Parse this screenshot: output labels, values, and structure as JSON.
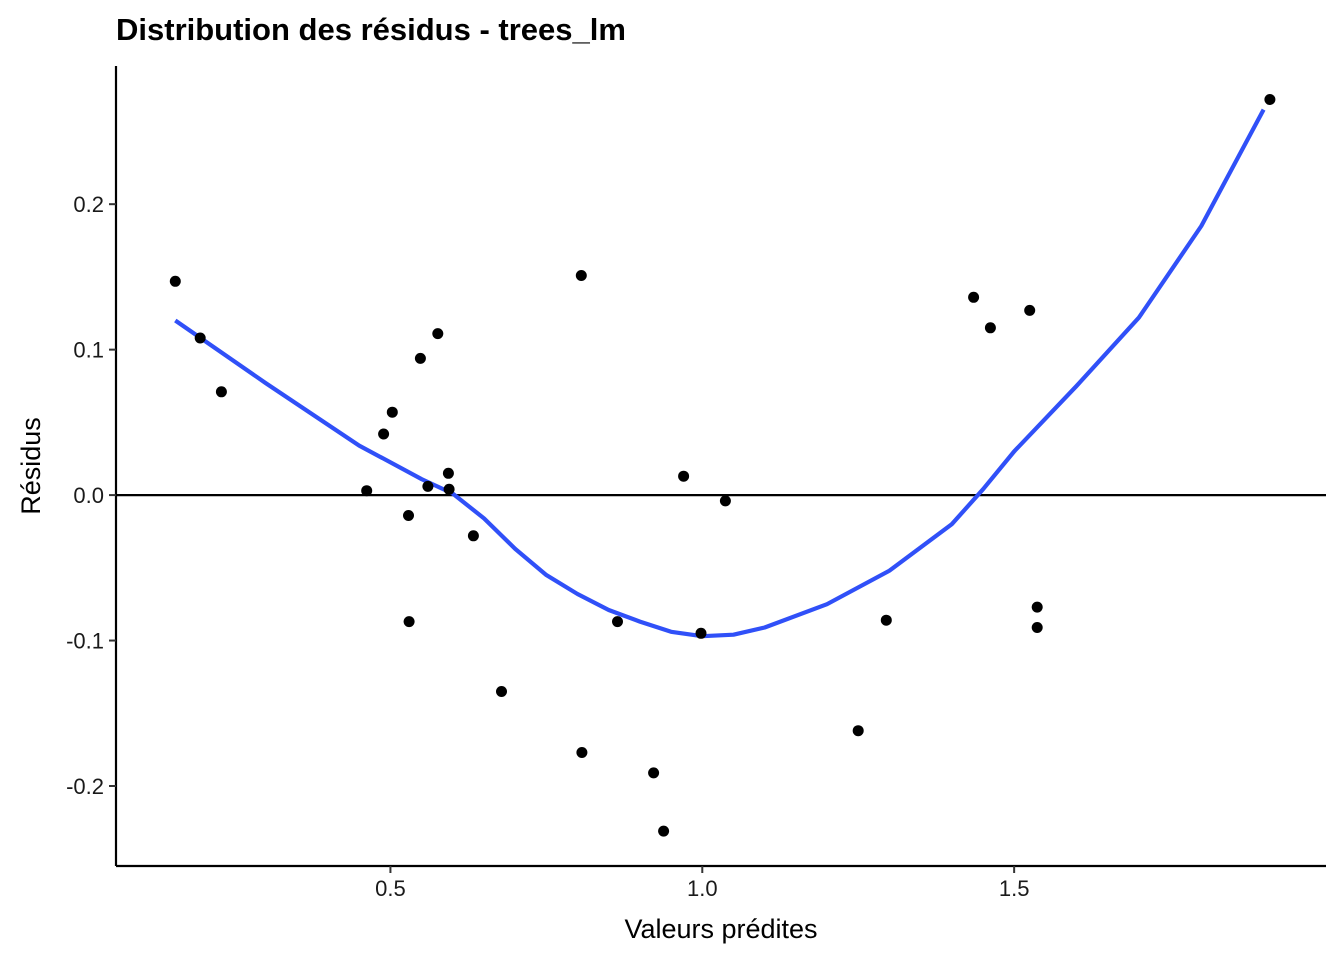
{
  "chart_data": {
    "type": "scatter",
    "title": "Distribution des résidus - trees_lm",
    "xlabel": "Valeurs prédites",
    "ylabel": "Résidus",
    "xlim": [
      0.06,
      2.0
    ],
    "ylim": [
      -0.255,
      0.295
    ],
    "x_ticks": [
      0.5,
      1.0,
      1.5
    ],
    "x_tick_labels": [
      "0.5",
      "1.0",
      "1.5"
    ],
    "y_ticks": [
      -0.2,
      -0.1,
      0.0,
      0.1,
      0.2
    ],
    "y_tick_labels": [
      "-0.2",
      "-0.1",
      "0.0",
      "0.1",
      "0.2"
    ],
    "reference_line": 0.0,
    "grid": false,
    "point_color": "#000000",
    "smooth_color": "#3050F8",
    "points": {
      "x": [
        0.155,
        0.195,
        0.229,
        0.462,
        0.489,
        0.503,
        0.529,
        0.53,
        0.548,
        0.56,
        0.576,
        0.593,
        0.594,
        0.633,
        0.678,
        0.806,
        0.807,
        0.864,
        0.922,
        0.938,
        0.97,
        0.998,
        1.037,
        1.25,
        1.295,
        1.435,
        1.462,
        1.525,
        1.537,
        1.537,
        1.91
      ],
      "y": [
        0.147,
        0.108,
        0.071,
        0.003,
        0.042,
        0.057,
        -0.014,
        -0.087,
        0.094,
        0.006,
        0.111,
        0.015,
        0.004,
        -0.028,
        -0.135,
        0.151,
        -0.177,
        -0.087,
        -0.191,
        -0.231,
        0.013,
        -0.095,
        -0.004,
        -0.162,
        -0.086,
        0.136,
        0.115,
        0.127,
        -0.077,
        -0.091,
        0.272
      ]
    },
    "smooth_line": {
      "x": [
        0.155,
        0.3,
        0.45,
        0.55,
        0.6,
        0.65,
        0.7,
        0.75,
        0.8,
        0.85,
        0.9,
        0.95,
        1.0,
        1.05,
        1.1,
        1.2,
        1.3,
        1.4,
        1.45,
        1.5,
        1.6,
        1.7,
        1.8,
        1.9
      ],
      "y": [
        0.12,
        0.077,
        0.034,
        0.011,
        0.001,
        -0.016,
        -0.037,
        -0.055,
        -0.068,
        -0.079,
        -0.087,
        -0.094,
        -0.097,
        -0.096,
        -0.091,
        -0.075,
        -0.052,
        -0.02,
        0.004,
        0.03,
        0.075,
        0.122,
        0.185,
        0.265
      ]
    }
  }
}
